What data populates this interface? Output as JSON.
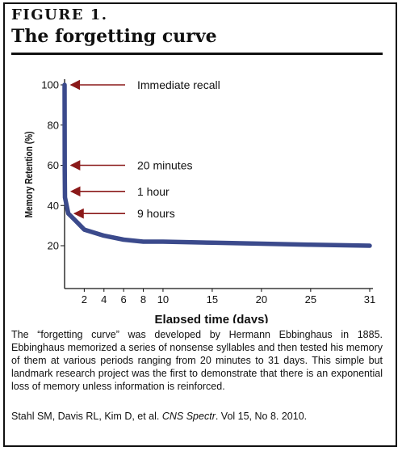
{
  "figure": {
    "label": "FIGURE 1.",
    "title": "The forgetting curve"
  },
  "chart_data": {
    "type": "line",
    "xlabel": "Elapsed time (days)",
    "ylabel": "Memory Retention (%)",
    "x_ticks": [
      2,
      4,
      6,
      8,
      10,
      15,
      20,
      25,
      31
    ],
    "y_ticks": [
      20,
      40,
      60,
      80,
      100
    ],
    "xlim": [
      0,
      31
    ],
    "ylim": [
      0,
      100
    ],
    "grid": false,
    "series": [
      {
        "color": "#3b4a8c",
        "points": [
          {
            "x": 0,
            "y": 100
          },
          {
            "x": 0.014,
            "y": 58
          },
          {
            "x": 0.042,
            "y": 44
          },
          {
            "x": 0.375,
            "y": 36
          },
          {
            "x": 1,
            "y": 33
          },
          {
            "x": 2,
            "y": 28
          },
          {
            "x": 4,
            "y": 25
          },
          {
            "x": 6,
            "y": 23
          },
          {
            "x": 8,
            "y": 22
          },
          {
            "x": 10,
            "y": 22
          },
          {
            "x": 15,
            "y": 21.5
          },
          {
            "x": 20,
            "y": 21
          },
          {
            "x": 25,
            "y": 20.5
          },
          {
            "x": 31,
            "y": 20
          }
        ]
      }
    ],
    "annotations": [
      {
        "text": "Immediate recall",
        "x": 0,
        "y": 100
      },
      {
        "text": "20 minutes",
        "x": 0.014,
        "y": 60
      },
      {
        "text": "1 hour",
        "x": 0.042,
        "y": 47
      },
      {
        "text": "9 hours",
        "x": 0.375,
        "y": 36
      }
    ],
    "arrow_color": "#8b1a1a"
  },
  "caption": "The “forgetting curve” was developed by Hermann Ebbinghaus in 1885. Ebbinghaus memorized a series of nonsense syllables and then tested his memory of them at various periods ranging from 20 minutes to 31 days.  This simple but landmark research project was the first to demonstrate that there is an exponential loss of memory unless information is reinforced.",
  "citation": {
    "prefix": "Stahl SM, Davis RL, Kim D, et al. ",
    "journal": "CNS Spectr",
    "suffix": ". Vol 15, No 8. 2010."
  }
}
